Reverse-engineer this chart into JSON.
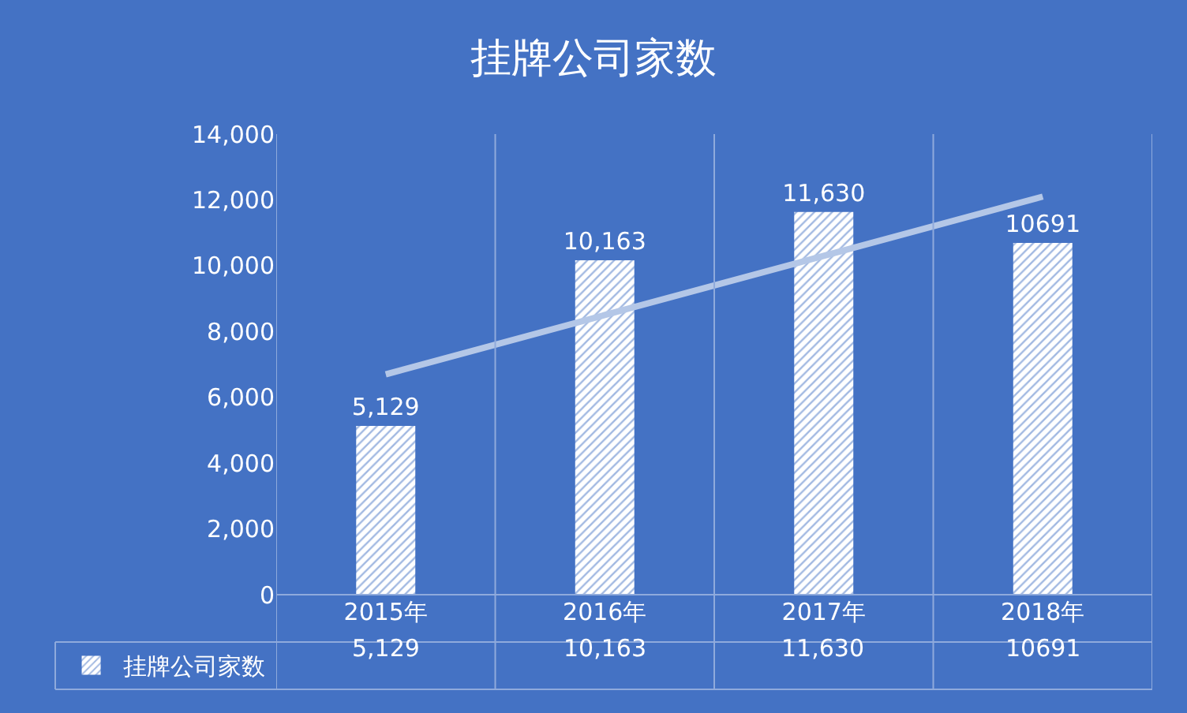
{
  "chart_data": {
    "type": "bar",
    "title": "挂牌公司家数",
    "categories": [
      "2015年",
      "2016年",
      "2017年",
      "2018年"
    ],
    "series": [
      {
        "name": "挂牌公司家数",
        "color": "#ffffff",
        "values": [
          5129,
          10163,
          11630,
          10691
        ],
        "value_labels": [
          "5,129",
          "10,163",
          "11,630",
          "10691"
        ]
      },
      {
        "type": "line",
        "color": "#b4c7e7",
        "values": [
          6700,
          8500,
          10300,
          12100
        ]
      }
    ],
    "ylim": [
      0,
      14000
    ],
    "yticks": [
      0,
      {
        "value": 2000,
        "label": "2,000"
      },
      {
        "value": 4000,
        "label": "4,000"
      },
      {
        "value": 6000,
        "label": "6,000"
      },
      {
        "value": 8000,
        "label": "8,000"
      },
      {
        "value": 10000,
        "label": "10,000"
      },
      {
        "value": 12000,
        "label": "12,000"
      },
      {
        "value": 14000,
        "label": "14,000"
      }
    ],
    "grid": false,
    "legend": "bottom left",
    "marker": "none"
  }
}
